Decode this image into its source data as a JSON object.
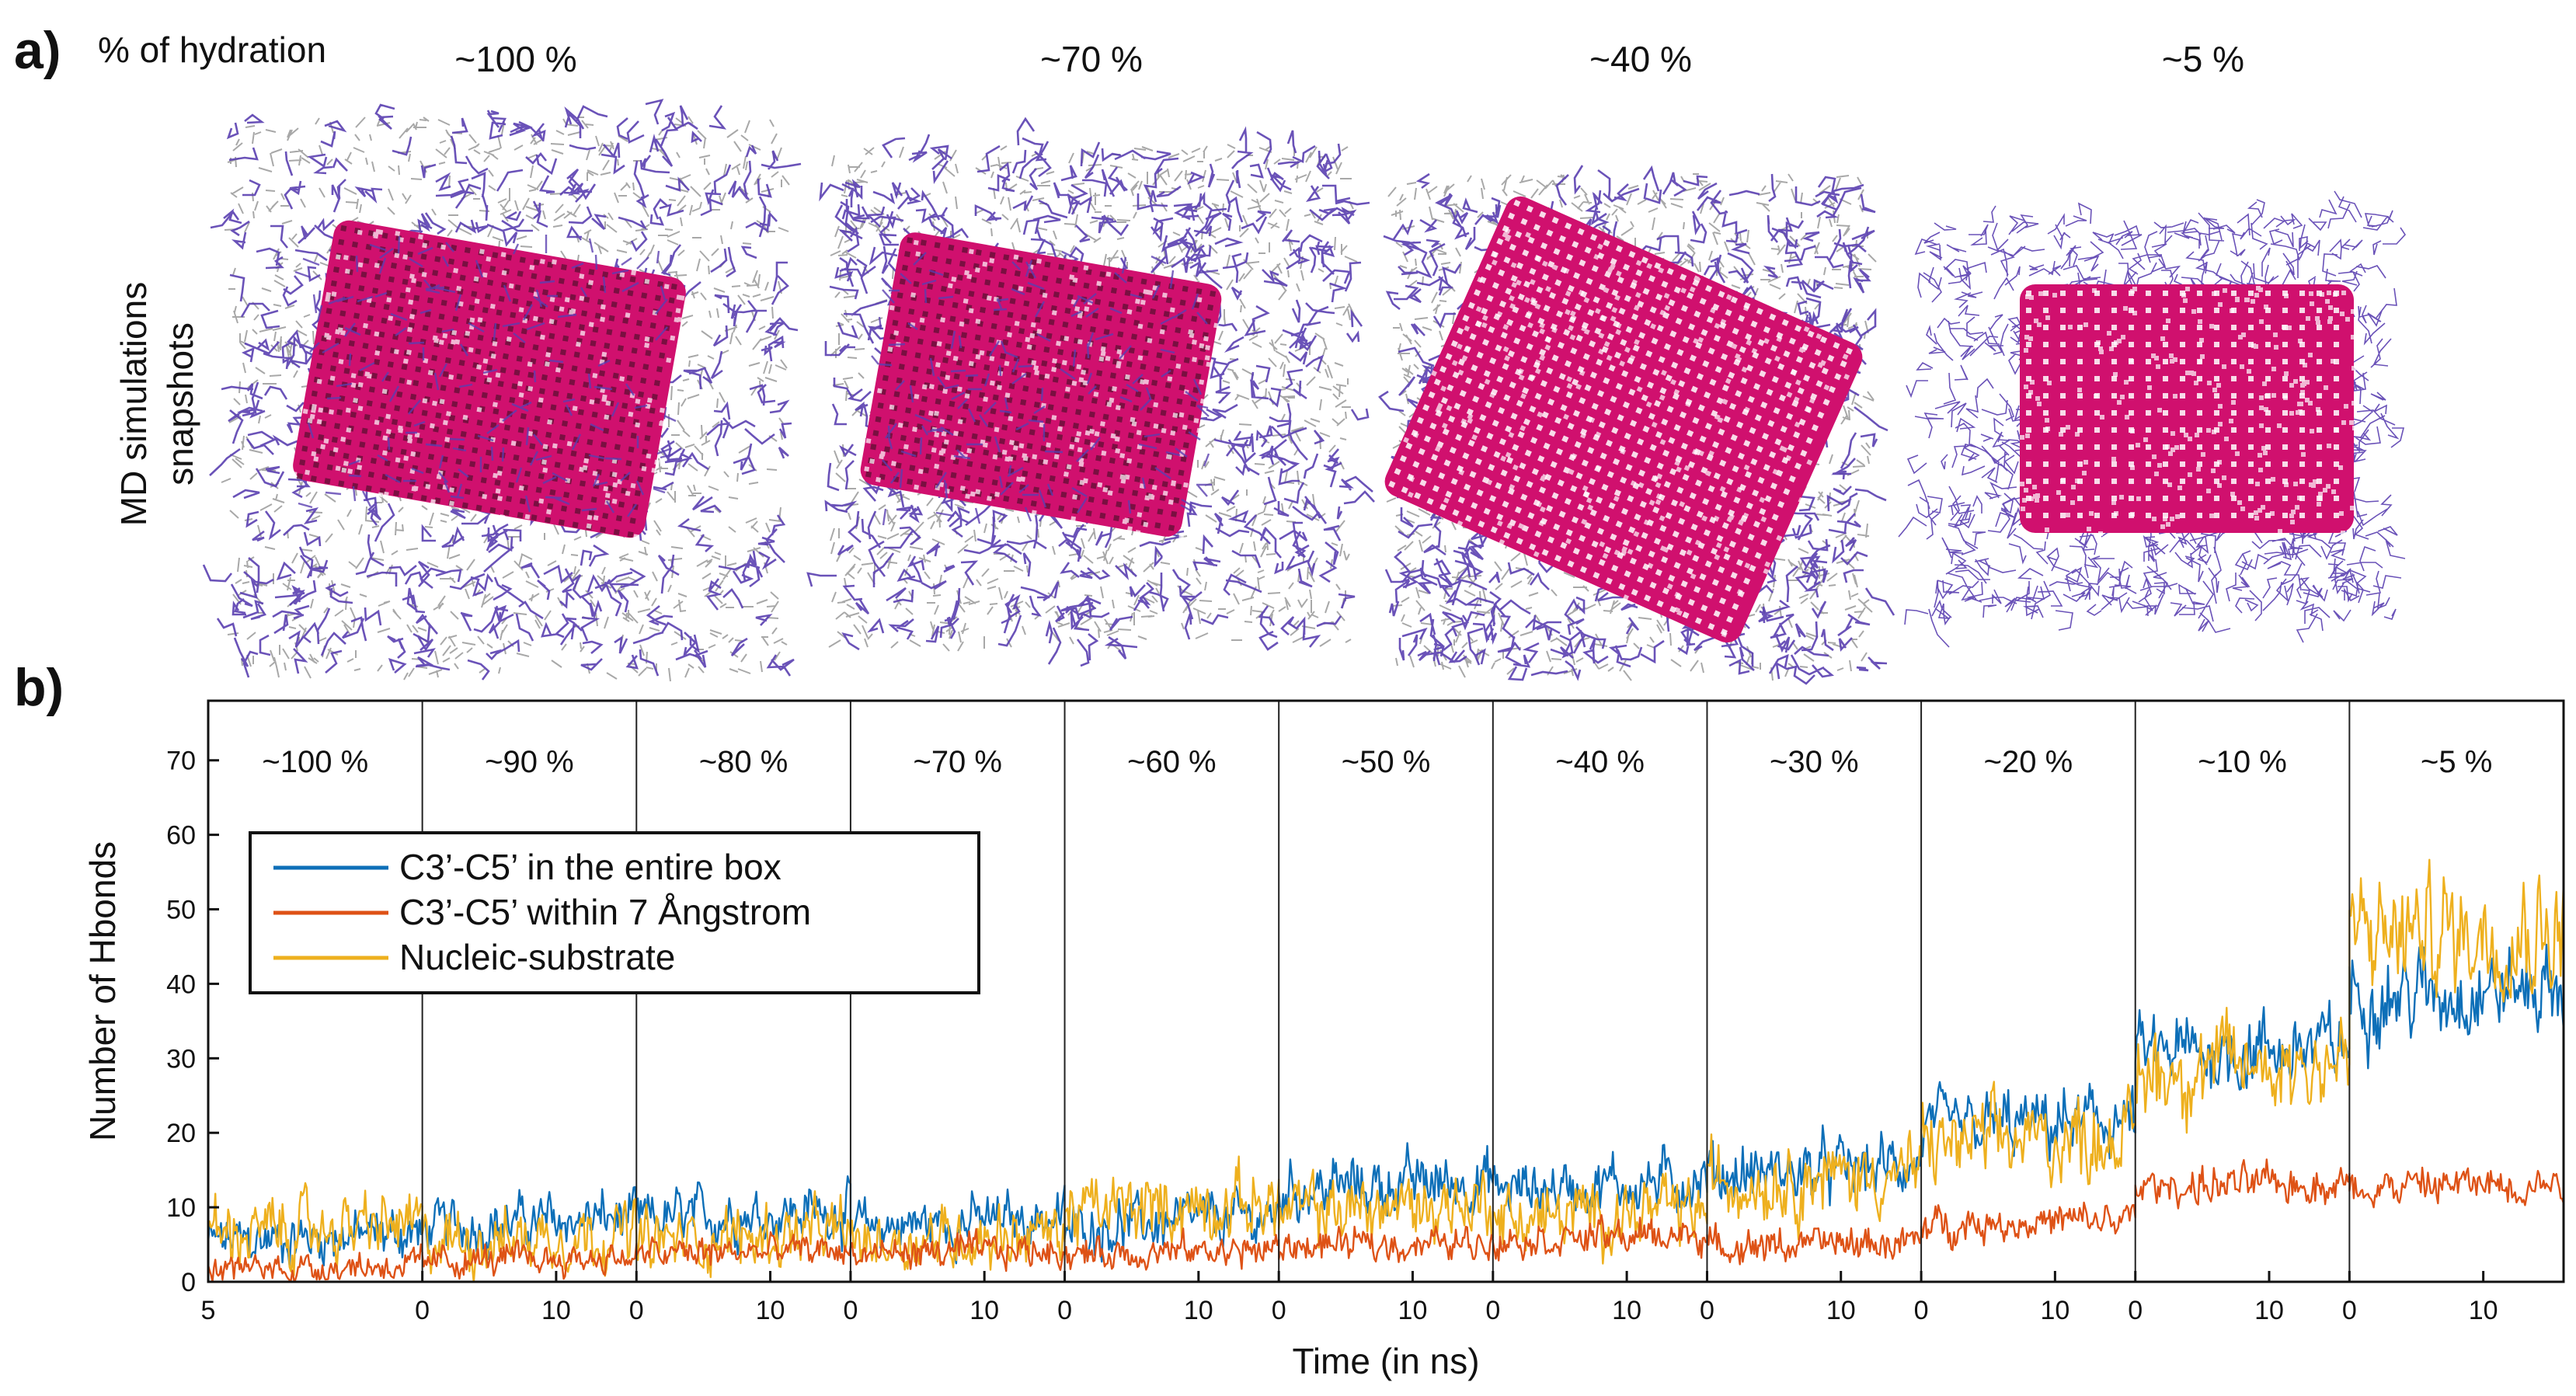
{
  "panel_a": {
    "letter": "a)",
    "header_label": "% of hydration",
    "row_label_line1": "MD simulations",
    "row_label_line2": "snapshots",
    "snapshots": [
      {
        "label": "~100 %",
        "solute_pattern": "dense"
      },
      {
        "label": "~70 %",
        "solute_pattern": "dense"
      },
      {
        "label": "~40 %",
        "solute_pattern": "diagonal"
      },
      {
        "label": "~5 %",
        "solute_pattern": "grid"
      }
    ],
    "colors": {
      "water": "#a8a8a8",
      "substrate": "#5a3fb0",
      "nucleic": "#d0106e",
      "nucleic_dark": "#6b0f3a"
    }
  },
  "panel_b": {
    "letter": "b)"
  },
  "chart_data": {
    "type": "line",
    "title": "",
    "xlabel": "Time (in ns)",
    "ylabel": "Number of Hbonds",
    "ylim": [
      0,
      78
    ],
    "yticks": [
      0,
      10,
      20,
      30,
      40,
      50,
      60,
      70
    ],
    "grid": false,
    "legend_position": "upper-left",
    "segments": [
      {
        "label": "~100 %",
        "duration": 16,
        "tick_values": [
          5
        ],
        "means": {
          "entire": 6,
          "within": 2,
          "nucleic": 7
        }
      },
      {
        "label": "~90 %",
        "duration": 16,
        "tick_values": [
          0,
          10
        ],
        "means": {
          "entire": 8,
          "within": 3,
          "nucleic": 6
        }
      },
      {
        "label": "~80 %",
        "duration": 16,
        "tick_values": [
          0,
          10
        ],
        "means": {
          "entire": 9,
          "within": 4,
          "nucleic": 6
        }
      },
      {
        "label": "~70 %",
        "duration": 16,
        "tick_values": [
          0,
          10
        ],
        "means": {
          "entire": 8,
          "within": 4,
          "nucleic": 6
        }
      },
      {
        "label": "~60 %",
        "duration": 16,
        "tick_values": [
          0,
          10
        ],
        "means": {
          "entire": 8,
          "within": 4,
          "nucleic": 10
        }
      },
      {
        "label": "~50 %",
        "duration": 16,
        "tick_values": [
          0,
          10
        ],
        "means": {
          "entire": 13,
          "within": 5,
          "nucleic": 10
        }
      },
      {
        "label": "~40 %",
        "duration": 16,
        "tick_values": [
          0,
          10
        ],
        "means": {
          "entire": 13,
          "within": 6,
          "nucleic": 9
        }
      },
      {
        "label": "~30 %",
        "duration": 16,
        "tick_values": [
          0,
          10
        ],
        "means": {
          "entire": 15,
          "within": 5,
          "nucleic": 14
        }
      },
      {
        "label": "~20 %",
        "duration": 16,
        "tick_values": [
          0,
          10
        ],
        "means": {
          "entire": 21,
          "within": 8,
          "nucleic": 19
        }
      },
      {
        "label": "~10 %",
        "duration": 16,
        "tick_values": [
          0,
          10
        ],
        "means": {
          "entire": 31,
          "within": 13,
          "nucleic": 29
        }
      },
      {
        "label": "~5 %",
        "duration": 16,
        "tick_values": [
          0,
          10
        ],
        "means": {
          "entire": 39,
          "within": 13,
          "nucleic": 47
        }
      }
    ],
    "series": [
      {
        "name": "C3’-C5’ in the entire box",
        "key": "entire",
        "color": "#0d6fb8",
        "noise": 2.4
      },
      {
        "name": "C3’-C5’ within 7 Ångstrom",
        "key": "within",
        "color": "#de5216",
        "noise": 1.6
      },
      {
        "name": "Nucleic-substrate",
        "key": "nucleic",
        "color": "#eeb01e",
        "noise": 3.0
      }
    ]
  }
}
